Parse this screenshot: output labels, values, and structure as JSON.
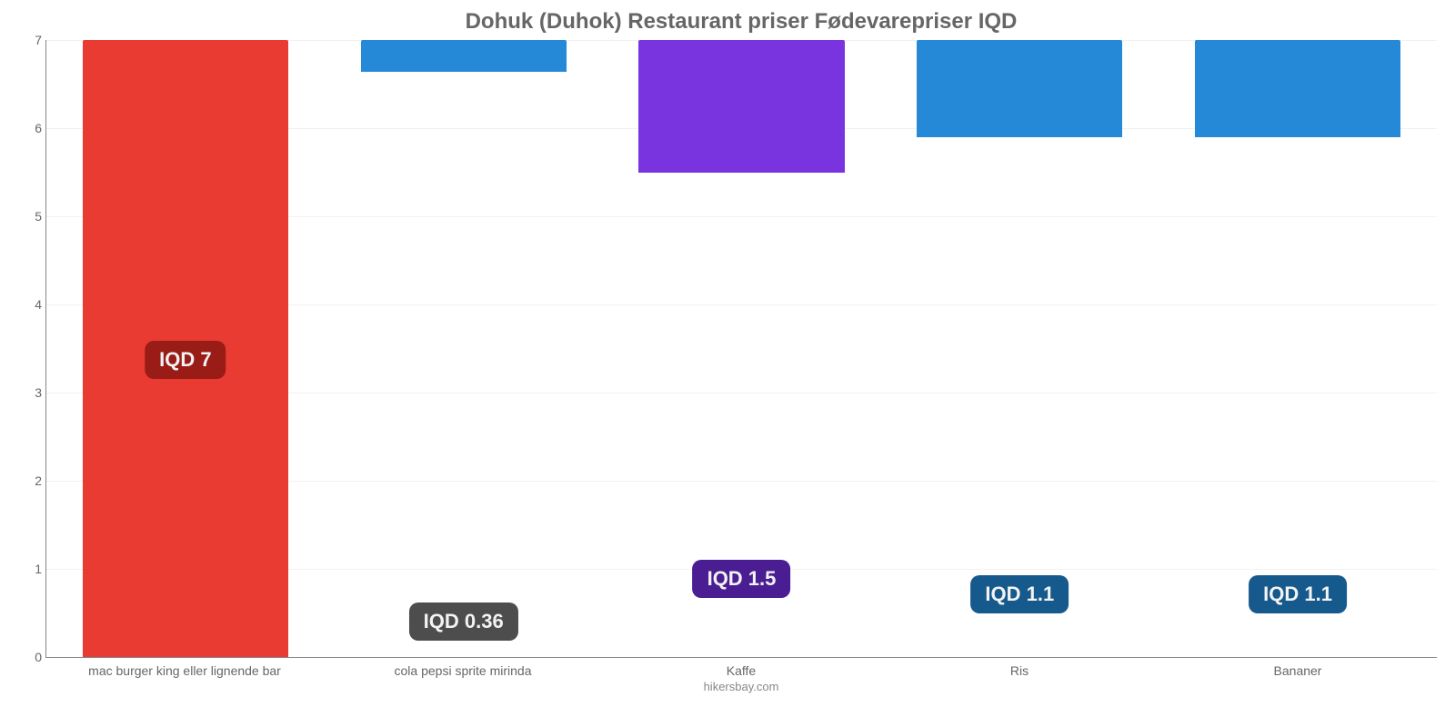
{
  "chart": {
    "type": "bar",
    "title": "Dohuk (Duhok) Restaurant priser Fødevarepriser IQD",
    "title_color": "#666666",
    "title_fontsize": 24,
    "background_color": "#ffffff",
    "grid_color": "#f1f1f1",
    "axis_color": "#888888",
    "ylim": [
      0,
      7
    ],
    "ytick_step": 1,
    "yticks": [
      0,
      1,
      2,
      3,
      4,
      5,
      6,
      7
    ],
    "bar_width_pct": 74,
    "categories": [
      "mac burger king eller lignende bar",
      "cola pepsi sprite mirinda",
      "Kaffe",
      "Ris",
      "Bananer"
    ],
    "values": [
      7,
      0.36,
      1.5,
      1.1,
      1.1
    ],
    "bar_colors": [
      "#ea3b32",
      "#2589d8",
      "#7934e0",
      "#2589d8",
      "#2589d8"
    ],
    "value_labels": [
      "IQD 7",
      "IQD 0.36",
      "IQD 1.5",
      "IQD 1.1",
      "IQD 1.1"
    ],
    "badge_colors": [
      "#9a1c16",
      "#4d4d4d",
      "#4a1d93",
      "#16598d",
      "#16598d"
    ],
    "badge_text_color": "#f3f3f3",
    "badge_fontsize": 22,
    "label_fontsize": 14,
    "label_color": "#666666",
    "attribution": "hikersbay.com",
    "attribution_color": "#888888"
  }
}
